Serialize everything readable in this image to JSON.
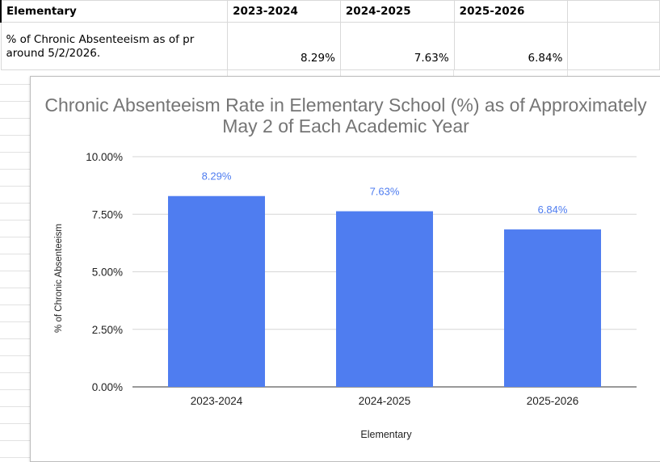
{
  "sheet": {
    "header_row": [
      "Elementary",
      "2023-2024",
      "2024-2025",
      "2025-2026"
    ],
    "data_row": {
      "label": "% of Chronic Absenteeism as of pr around 5/2/2026.",
      "values": [
        "8.29%",
        "7.63%",
        "6.84%"
      ]
    }
  },
  "chart_data": {
    "type": "bar",
    "title": "Chronic Absenteeism Rate in Elementary School (%) as of Approximately May 2 of Each Academic Year",
    "categories": [
      "2023-2024",
      "2024-2025",
      "2025-2026"
    ],
    "values": [
      8.29,
      7.63,
      6.84
    ],
    "data_labels": [
      "8.29%",
      "7.63%",
      "6.84%"
    ],
    "xlabel": "Elementary",
    "ylabel": "% of Chronic Absenteeism",
    "ylim": [
      0,
      10
    ],
    "yticks": [
      0,
      2.5,
      5,
      7.5,
      10
    ],
    "ytick_labels": [
      "0.00%",
      "2.50%",
      "5.00%",
      "7.50%",
      "10.00%"
    ],
    "grid": true,
    "legend": "none",
    "bar_color": "#4f7df0",
    "title_color": "#757575"
  }
}
